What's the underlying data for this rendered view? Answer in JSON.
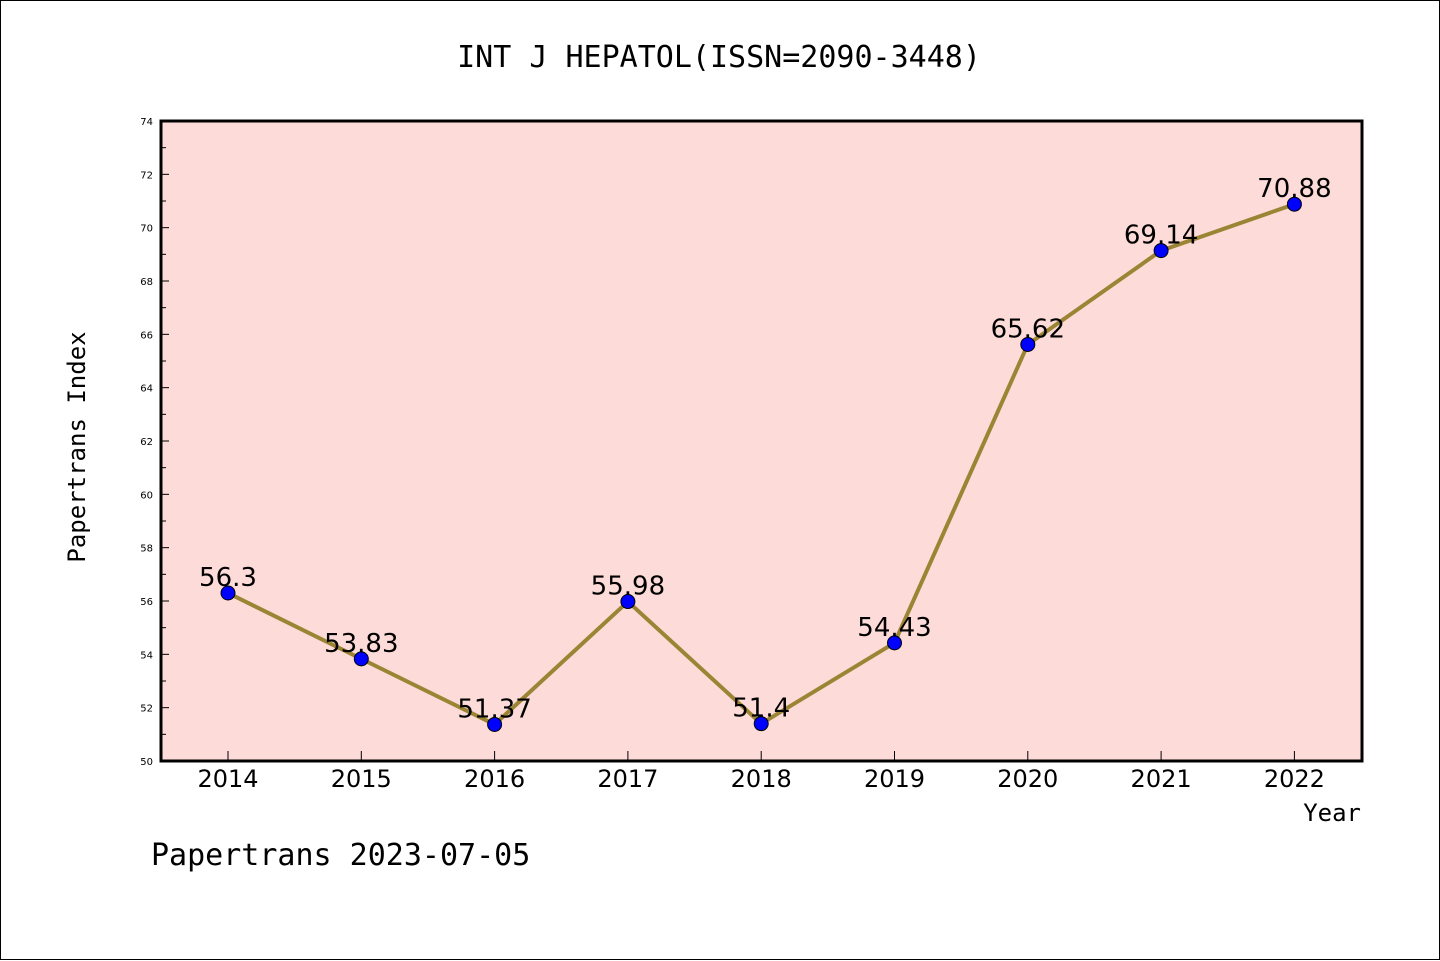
{
  "chart_data": {
    "type": "line",
    "title": "INT J HEPATOL(ISSN=2090-3448)",
    "xlabel": "Year",
    "ylabel": "Papertrans Index",
    "categories": [
      "2014",
      "2015",
      "2016",
      "2017",
      "2018",
      "2019",
      "2020",
      "2021",
      "2022"
    ],
    "series": [
      {
        "values": [
          56.3,
          53.83,
          51.37,
          55.98,
          51.4,
          54.43,
          65.62,
          69.14,
          70.88
        ],
        "labels": [
          "56.3",
          "53.83",
          "51.37",
          "55.98",
          "51.4",
          "54.43",
          "65.62",
          "69.14",
          "70.88"
        ]
      }
    ],
    "ylim": [
      50,
      74
    ],
    "yticks": [
      "50",
      "52",
      "54",
      "56",
      "58",
      "60",
      "62",
      "64",
      "66",
      "68",
      "70",
      "72",
      "74"
    ],
    "ytick_values": [
      50,
      52,
      54,
      56,
      58,
      60,
      62,
      64,
      66,
      68,
      70,
      72,
      74
    ],
    "grid": false,
    "colors": {
      "plot_background": "#fddbd8",
      "line": "#9b8433",
      "marker": "#0000ff",
      "marker_edge": "#000000"
    }
  },
  "footer": "Papertrans 2023-07-05"
}
